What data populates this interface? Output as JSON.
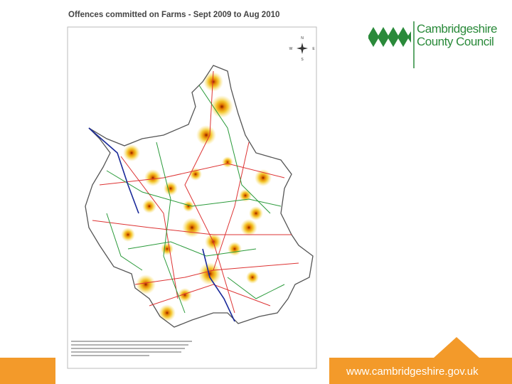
{
  "title": "Offences committed on Farms - Sept 2009 to Aug 2010",
  "logo": {
    "line1": "Cambridgeshire",
    "line2": "County Council"
  },
  "compass": {
    "north": "N",
    "south": "S",
    "west": "W",
    "east": "E"
  },
  "footer": "www.cambridgeshire.gov.uk"
}
